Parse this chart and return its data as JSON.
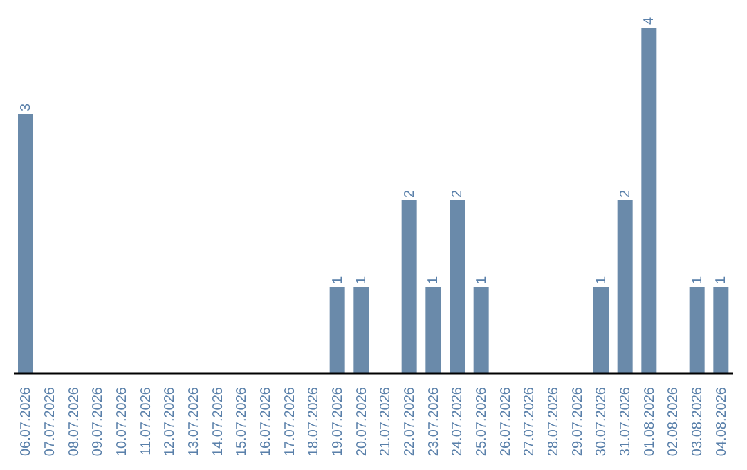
{
  "chart_data": {
    "type": "bar",
    "categories": [
      "06.07.2026",
      "07.07.2026",
      "08.07.2026",
      "09.07.2026",
      "10.07.2026",
      "11.07.2026",
      "12.07.2026",
      "13.07.2026",
      "14.07.2026",
      "15.07.2026",
      "16.07.2026",
      "17.07.2026",
      "18.07.2026",
      "19.07.2026",
      "20.07.2026",
      "21.07.2026",
      "22.07.2026",
      "23.07.2026",
      "24.07.2026",
      "25.07.2026",
      "26.07.2026",
      "27.07.2026",
      "28.07.2026",
      "29.07.2026",
      "30.07.2026",
      "31.07.2026",
      "01.08.2026",
      "02.08.2026",
      "03.08.2026",
      "04.08.2026"
    ],
    "values": [
      3,
      0,
      0,
      0,
      0,
      0,
      0,
      0,
      0,
      0,
      0,
      0,
      0,
      1,
      1,
      0,
      2,
      1,
      2,
      1,
      0,
      0,
      0,
      0,
      1,
      2,
      4,
      0,
      1,
      1
    ],
    "value_labels": [
      "3",
      null,
      null,
      null,
      null,
      null,
      null,
      null,
      null,
      null,
      null,
      null,
      null,
      "1",
      "1",
      null,
      "2",
      "1",
      "2",
      "1",
      null,
      null,
      null,
      null,
      "1",
      "2",
      "4",
      null,
      "1",
      "1"
    ],
    "color": "#6a8aaa",
    "grid": false,
    "legend": false,
    "tick_labels": "x"
  }
}
